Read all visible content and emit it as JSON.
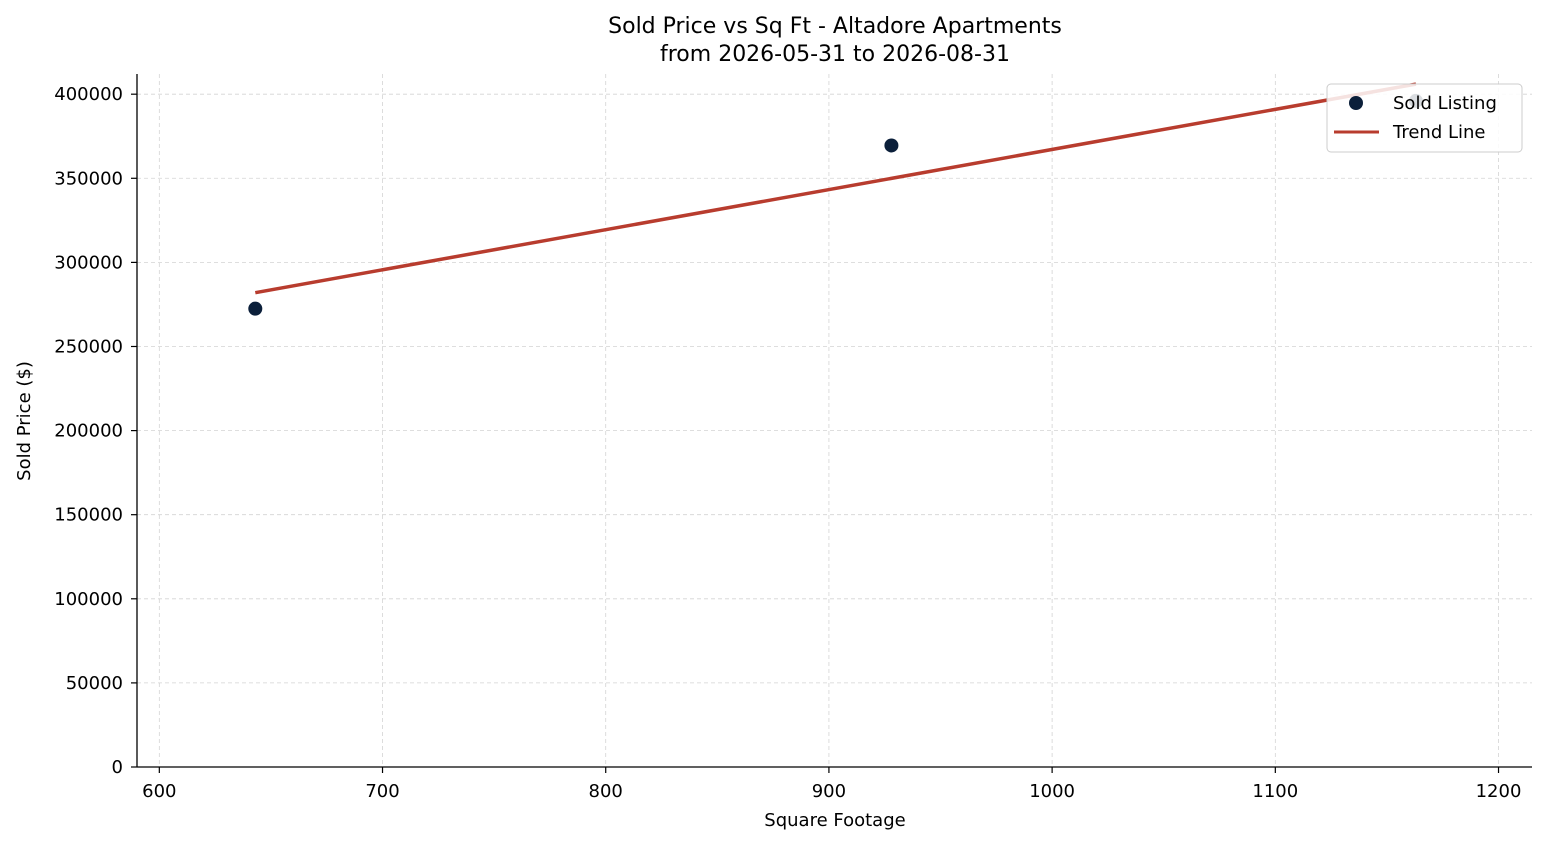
{
  "chart_data": {
    "type": "scatter",
    "title_line1": "Sold Price vs Sq Ft - Altadore Apartments",
    "title_line2": "from 2026-05-31 to 2026-08-31",
    "xlabel": "Square Footage",
    "ylabel": "Sold Price ($)",
    "xlim": [
      590,
      1215
    ],
    "ylim": [
      0,
      412000
    ],
    "x_ticks": [
      600,
      700,
      800,
      900,
      1000,
      1100,
      1200
    ],
    "y_ticks": [
      0,
      50000,
      100000,
      150000,
      200000,
      250000,
      300000,
      350000,
      400000
    ],
    "grid": true,
    "legend_position": "top-right",
    "series": [
      {
        "name": "Sold Listing",
        "kind": "points",
        "color": "#0b1f3a",
        "x": [
          643,
          928,
          1163
        ],
        "y": [
          272500,
          369500,
          396000
        ]
      },
      {
        "name": "Trend Line",
        "kind": "line",
        "color": "#b83c2e",
        "x": [
          643,
          1163
        ],
        "y": [
          282000,
          406000
        ]
      }
    ]
  }
}
